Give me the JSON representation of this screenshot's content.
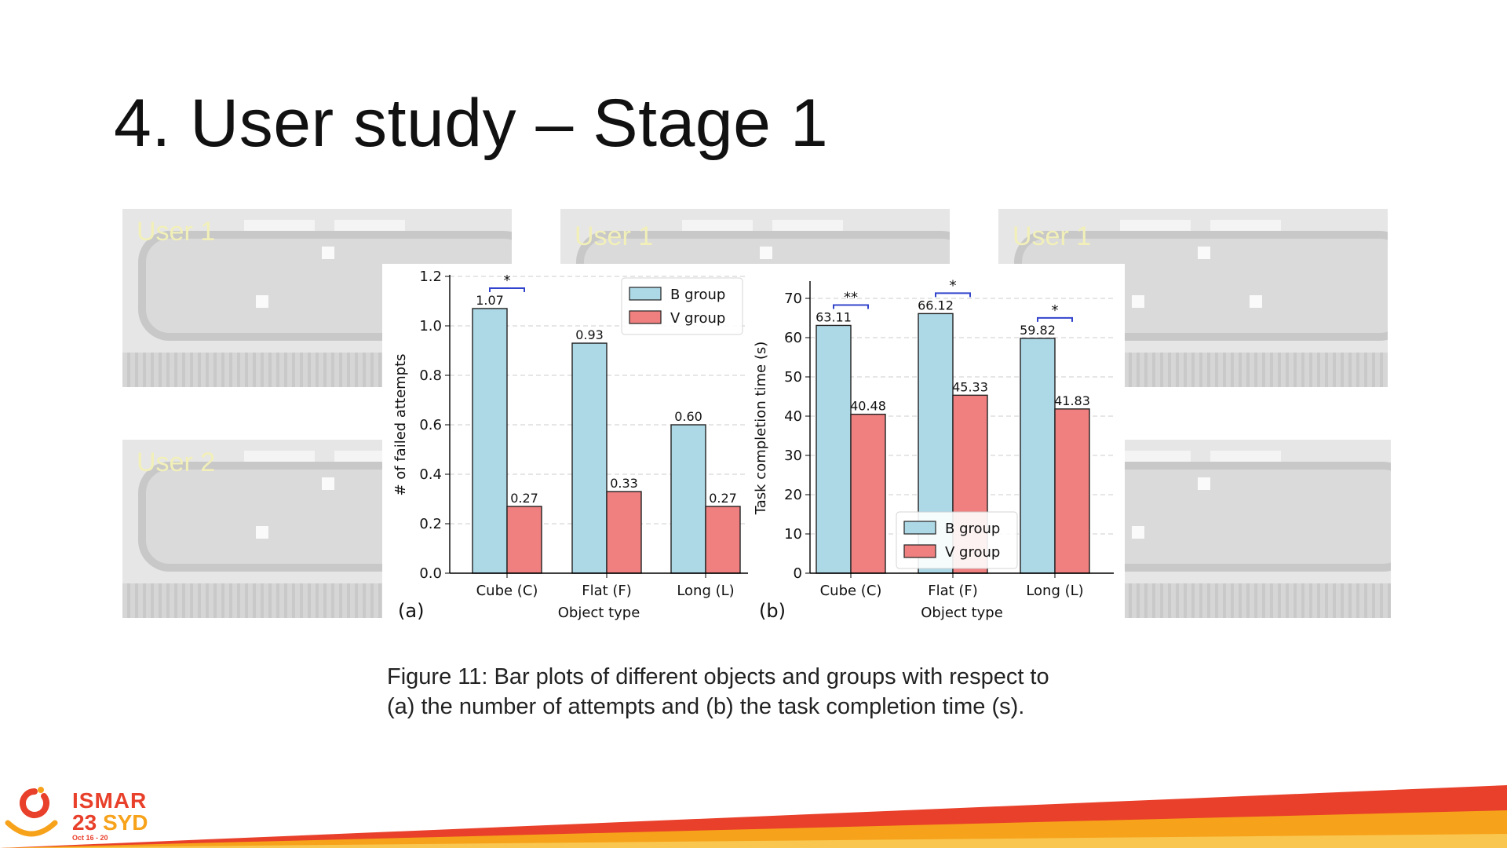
{
  "slide": {
    "title": "4. User study – Stage 1",
    "caption_line1": "Figure 11: Bar plots of different objects and groups with respect to",
    "caption_line2": "(a) the number of attempts and (b) the task completion time (s)."
  },
  "photos": [
    {
      "label": "User 1"
    },
    {
      "label": "User 1"
    },
    {
      "label": "User 1"
    },
    {
      "label": "User 2"
    },
    {
      "label": ""
    }
  ],
  "logo": {
    "line1": "ISMAR",
    "line2_num": "23",
    "line2_city": "SYD",
    "dates": "Oct 16 - 20"
  },
  "colors": {
    "b_group": "#add8e6",
    "v_group": "#f08080",
    "significance": "#3344cc",
    "stripe_red": "#e8402a",
    "stripe_orange": "#f7a21b"
  },
  "chart_data": [
    {
      "panel_label": "(a)",
      "type": "bar",
      "categories": [
        "Cube (C)",
        "Flat (F)",
        "Long (L)"
      ],
      "series": [
        {
          "name": "B group",
          "values": [
            1.07,
            0.93,
            0.6
          ],
          "labels": [
            "1.07",
            "0.93",
            "0.60"
          ]
        },
        {
          "name": "V group",
          "values": [
            0.27,
            0.33,
            0.27
          ],
          "labels": [
            "0.27",
            "0.33",
            "0.27"
          ]
        }
      ],
      "xlabel": "Object type",
      "ylabel": "# of failed attempts",
      "ylim": [
        0,
        1.2
      ],
      "yticks": [
        "0.0",
        "0.2",
        "0.4",
        "0.6",
        "0.8",
        "1.0",
        "1.2"
      ],
      "significance": [
        "*",
        "",
        ""
      ],
      "legend": "top-right",
      "grid": "horizontal dashed"
    },
    {
      "panel_label": "(b)",
      "type": "bar",
      "categories": [
        "Cube (C)",
        "Flat (F)",
        "Long (L)"
      ],
      "series": [
        {
          "name": "B group",
          "values": [
            63.11,
            66.12,
            59.82
          ],
          "labels": [
            "63.11",
            "66.12",
            "59.82"
          ]
        },
        {
          "name": "V group",
          "values": [
            40.48,
            45.33,
            41.83
          ],
          "labels": [
            "40.48",
            "45.33",
            "41.83"
          ]
        }
      ],
      "xlabel": "Object type",
      "ylabel": "Task completion time (s)",
      "ylim": [
        0,
        74
      ],
      "yticks": [
        "0",
        "10",
        "20",
        "30",
        "40",
        "50",
        "60",
        "70"
      ],
      "significance": [
        "**",
        "*",
        "*"
      ],
      "legend": "bottom-center",
      "grid": "horizontal dashed"
    }
  ]
}
